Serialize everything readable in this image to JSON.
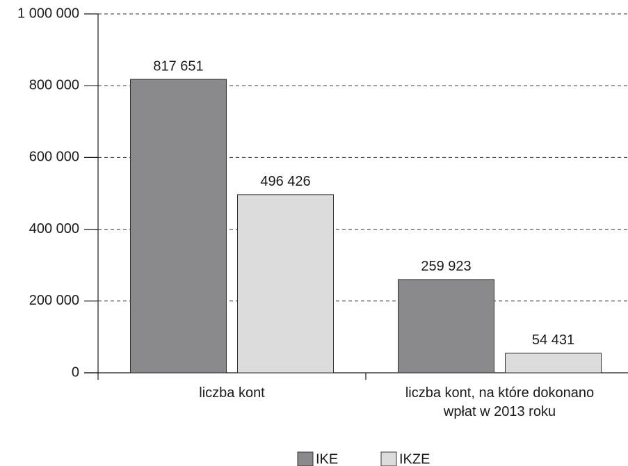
{
  "chart_data": {
    "type": "bar",
    "categories": [
      "liczba kont",
      "liczba kont, na które dokonano wpłat w 2013 roku"
    ],
    "series": [
      {
        "name": "IKE",
        "color": "#8a8a8c",
        "values": [
          817651,
          259923
        ],
        "value_labels": [
          "817 651",
          "259 923"
        ]
      },
      {
        "name": "IKZE",
        "color": "#dcdcdd",
        "values": [
          496426,
          54431
        ],
        "value_labels": [
          "496 426",
          "54 431"
        ]
      }
    ],
    "ylim": [
      0,
      1000000
    ],
    "yticks": [
      0,
      {
        "value": 200000,
        "label": "200 000"
      },
      {
        "value": 400000,
        "label": "400 000"
      },
      {
        "value": 600000,
        "label": "600 000"
      },
      {
        "value": 800000,
        "label": "800 000"
      },
      {
        "value": 1000000,
        "label": "1 000 000"
      }
    ],
    "grid": true,
    "legend": "bottom"
  }
}
